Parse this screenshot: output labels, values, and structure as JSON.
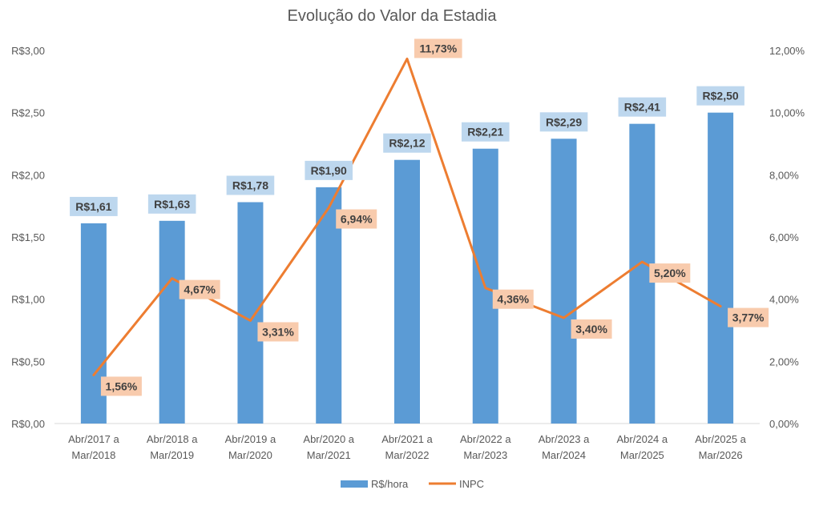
{
  "chart_data": {
    "type": "bar+line",
    "title": "Evolução do Valor da Estadia",
    "categories": [
      [
        "Abr/2017 a",
        "Mar/2018"
      ],
      [
        "Abr/2018 a",
        "Mar/2019"
      ],
      [
        "Abr/2019 a",
        "Mar/2020"
      ],
      [
        "Abr/2020 a",
        "Mar/2021"
      ],
      [
        "Abr/2021 a",
        "Mar/2022"
      ],
      [
        "Abr/2022 a",
        "Mar/2023"
      ],
      [
        "Abr/2023 a",
        "Mar/2024"
      ],
      [
        "Abr/2024 a",
        "Mar/2025"
      ],
      [
        "Abr/2025 a",
        "Mar/2026"
      ]
    ],
    "series": [
      {
        "name": "R$/hora",
        "type": "bar",
        "axis": "left",
        "color": "#5B9BD5",
        "label_bg": "#BDD7EE",
        "values": [
          1.61,
          1.63,
          1.78,
          1.9,
          2.12,
          2.21,
          2.29,
          2.41,
          2.5
        ],
        "labels": [
          "R$1,61",
          "R$1,63",
          "R$1,78",
          "R$1,90",
          "R$2,12",
          "R$2,21",
          "R$2,29",
          "R$2,41",
          "R$2,50"
        ]
      },
      {
        "name": "INPC",
        "type": "line",
        "axis": "right",
        "color": "#ED7D31",
        "label_bg": "#F8CBAD",
        "values": [
          1.56,
          4.67,
          3.31,
          6.94,
          11.73,
          4.36,
          3.4,
          5.2,
          3.77
        ],
        "labels": [
          "1,56%",
          "4,67%",
          "3,31%",
          "6,94%",
          "11,73%",
          "4,36%",
          "3,40%",
          "5,20%",
          "3,77%"
        ]
      }
    ],
    "y_left": {
      "range": [
        0,
        3.0
      ],
      "ticks": [
        0,
        0.5,
        1.0,
        1.5,
        2.0,
        2.5,
        3.0
      ],
      "tick_labels": [
        "R$0,00",
        "R$0,50",
        "R$1,00",
        "R$1,50",
        "R$2,00",
        "R$2,50",
        "R$3,00"
      ]
    },
    "y_right": {
      "range": [
        0,
        12
      ],
      "ticks": [
        0,
        2,
        4,
        6,
        8,
        10,
        12
      ],
      "tick_labels": [
        "0,00%",
        "2,00%",
        "4,00%",
        "6,00%",
        "8,00%",
        "10,00%",
        "12,00%"
      ]
    },
    "grid": false,
    "legend_position": "bottom"
  }
}
